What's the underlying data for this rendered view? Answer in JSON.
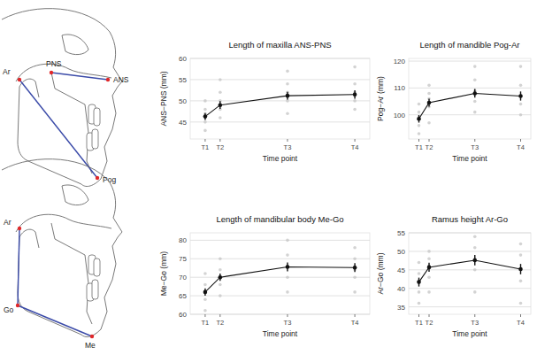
{
  "chart_data": [
    {
      "type": "line",
      "title": "Length of maxilla ANS-PNS",
      "x_label": "Time point",
      "y_label": "ANS−PNS (mm)",
      "xlim": [
        -1,
        11
      ],
      "xticks": [
        {
          "value": 0,
          "label": "T1"
        },
        {
          "value": 1,
          "label": "T2"
        },
        {
          "value": 5.5,
          "label": "T3"
        },
        {
          "value": 10,
          "label": "T4"
        }
      ],
      "ylim": [
        41,
        60
      ],
      "yticks": [
        45,
        50,
        55,
        60
      ],
      "grid": true,
      "series": [
        {
          "type": "scatter",
          "color": "#c4c4c4",
          "marker": "circle",
          "x": [
            0,
            0,
            0,
            0,
            0,
            1,
            1,
            1,
            1,
            1,
            5.5,
            5.5,
            5.5,
            5.5,
            5.5,
            10,
            10,
            10,
            10,
            10
          ],
          "values": [
            43,
            45,
            47,
            48,
            50,
            46,
            48,
            50,
            52,
            55,
            47,
            50,
            52,
            54,
            57,
            48,
            50,
            52,
            54,
            58
          ]
        },
        {
          "type": "line",
          "color": "#111111",
          "marker": "circle",
          "x": [
            0,
            1,
            5.5,
            10
          ],
          "values": [
            46.3,
            49.0,
            51.2,
            51.5
          ],
          "errors": [
            0.8,
            0.9,
            0.9,
            1.0
          ]
        }
      ]
    },
    {
      "type": "line",
      "title": "Length of mandible Pog-Ar",
      "x_label": "Time point",
      "y_label": "Pog−Ar (mm)",
      "xlim": [
        -1,
        11
      ],
      "xticks": [
        {
          "value": 0,
          "label": "T1"
        },
        {
          "value": 1,
          "label": "T2"
        },
        {
          "value": 5.5,
          "label": "T3"
        },
        {
          "value": 10,
          "label": "T4"
        }
      ],
      "ylim": [
        91,
        121
      ],
      "yticks": [
        100,
        110,
        120
      ],
      "grid": true,
      "series": [
        {
          "type": "scatter",
          "color": "#c4c4c4",
          "marker": "circle",
          "x": [
            0,
            0,
            0,
            0,
            0,
            1,
            1,
            1,
            1,
            1,
            5.5,
            5.5,
            5.5,
            5.5,
            5.5,
            10,
            10,
            10,
            10,
            10
          ],
          "values": [
            93,
            96,
            99,
            101,
            104,
            97,
            103,
            106,
            108,
            111,
            101,
            105,
            109,
            113,
            118,
            100,
            104,
            107,
            111,
            118
          ]
        },
        {
          "type": "line",
          "color": "#111111",
          "marker": "circle",
          "x": [
            0,
            1,
            5.5,
            10
          ],
          "values": [
            98.5,
            104.5,
            108.0,
            107.0
          ],
          "errors": [
            1.4,
            1.5,
            1.6,
            1.7
          ]
        }
      ]
    },
    {
      "type": "line",
      "title": "Length of mandibular body Me-Go",
      "x_label": "Time point",
      "y_label": "Me−Go (mm)",
      "xlim": [
        -1,
        11
      ],
      "xticks": [
        {
          "value": 0,
          "label": "T1"
        },
        {
          "value": 1,
          "label": "T2"
        },
        {
          "value": 5.5,
          "label": "T3"
        },
        {
          "value": 10,
          "label": "T4"
        }
      ],
      "ylim": [
        60,
        82
      ],
      "yticks": [
        60,
        65,
        70,
        75,
        80
      ],
      "grid": true,
      "series": [
        {
          "type": "scatter",
          "color": "#c4c4c4",
          "marker": "circle",
          "x": [
            0,
            0,
            0,
            0,
            0,
            1,
            1,
            1,
            1,
            1,
            5.5,
            5.5,
            5.5,
            5.5,
            5.5,
            10,
            10,
            10,
            10,
            10
          ],
          "values": [
            61,
            64,
            66,
            68,
            71,
            65,
            68,
            70,
            72,
            75,
            66,
            70,
            73,
            76,
            80,
            66,
            70,
            72,
            75,
            78
          ]
        },
        {
          "type": "line",
          "color": "#111111",
          "marker": "circle",
          "x": [
            0,
            1,
            5.5,
            10
          ],
          "values": [
            66.0,
            70.0,
            72.8,
            72.6
          ],
          "errors": [
            1.0,
            1.0,
            1.2,
            1.2
          ]
        }
      ]
    },
    {
      "type": "line",
      "title": "Ramus height Ar-Go",
      "x_label": "Time point",
      "y_label": "Ar−Go (mm)",
      "xlim": [
        -1,
        11
      ],
      "xticks": [
        {
          "value": 0,
          "label": "T1"
        },
        {
          "value": 1,
          "label": "T2"
        },
        {
          "value": 5.5,
          "label": "T3"
        },
        {
          "value": 10,
          "label": "T4"
        }
      ],
      "ylim": [
        33,
        55
      ],
      "yticks": [
        35,
        40,
        45,
        50,
        55
      ],
      "grid": true,
      "series": [
        {
          "type": "scatter",
          "color": "#c4c4c4",
          "marker": "circle",
          "x": [
            0,
            0,
            0,
            0,
            0,
            1,
            1,
            1,
            1,
            1,
            5.5,
            5.5,
            5.5,
            5.5,
            5.5,
            10,
            10,
            10,
            10,
            10
          ],
          "values": [
            36,
            39,
            42,
            44,
            47,
            39,
            43,
            46,
            48,
            50,
            39,
            45,
            48,
            51,
            54,
            36,
            42,
            45,
            49,
            52
          ]
        },
        {
          "type": "line",
          "color": "#111111",
          "marker": "circle",
          "x": [
            0,
            1,
            5.5,
            10
          ],
          "values": [
            41.7,
            45.7,
            47.6,
            45.2
          ],
          "errors": [
            1.2,
            1.2,
            1.4,
            1.4
          ]
        }
      ]
    }
  ],
  "diagrams": [
    {
      "labels": [
        "Ar",
        "PNS",
        "ANS",
        "Pog"
      ]
    },
    {
      "labels": [
        "Ar",
        "Go",
        "Me"
      ]
    }
  ]
}
